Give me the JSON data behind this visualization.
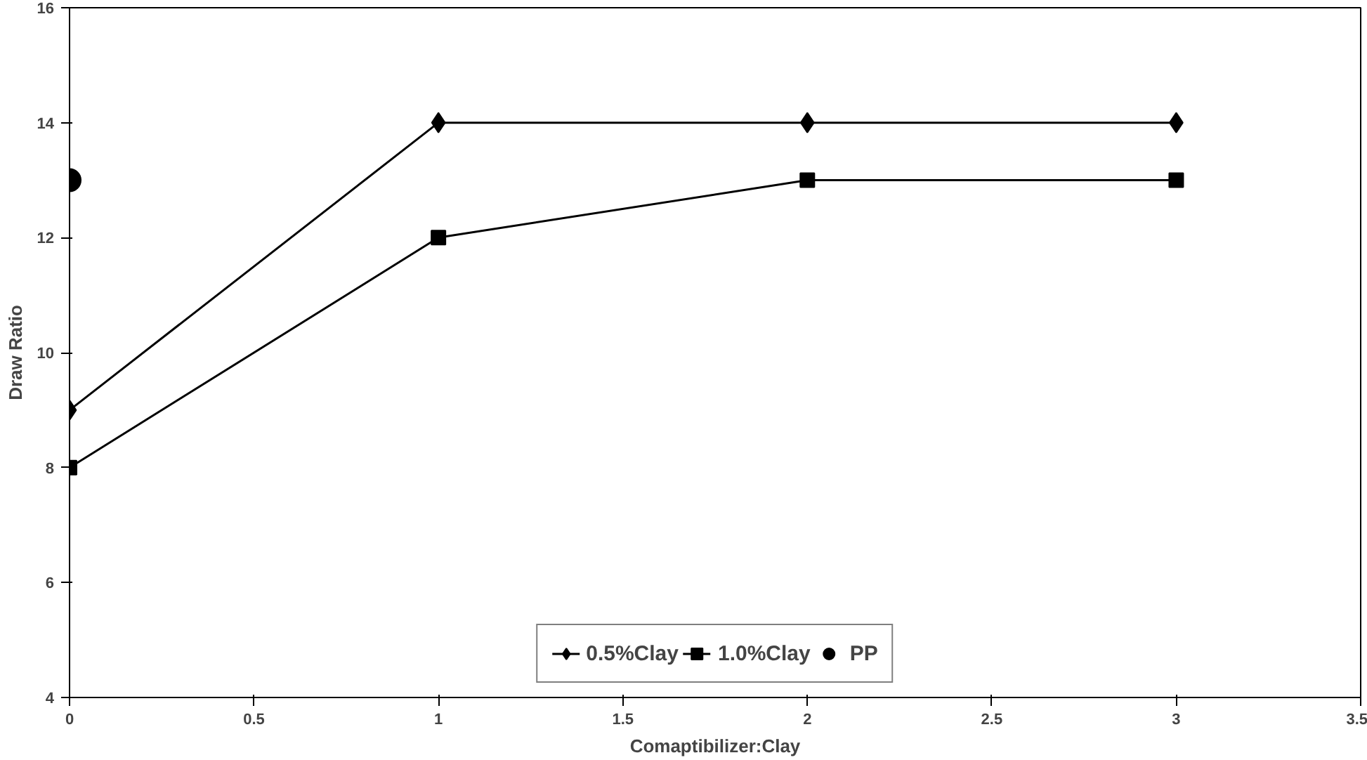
{
  "chart_data": {
    "type": "line",
    "xlabel": "Comaptibilizer:Clay",
    "ylabel": "Draw Ratio",
    "xlim": [
      0,
      3.5
    ],
    "xticks": [
      0,
      0.5,
      1,
      1.5,
      2,
      2.5,
      3,
      3.5
    ],
    "ylim": [
      4,
      16
    ],
    "yticks": [
      4,
      6,
      8,
      10,
      12,
      14,
      16
    ],
    "grid": false,
    "legend": "bottom",
    "series": [
      {
        "name": "0.5%Clay",
        "color": "#000000",
        "marker": "diamond",
        "x": [
          0,
          1,
          2,
          3
        ],
        "values": [
          9,
          14,
          14,
          14
        ]
      },
      {
        "name": "1.0%Clay",
        "color": "#000000",
        "marker": "square",
        "x": [
          0,
          1,
          2,
          3
        ],
        "values": [
          8,
          12,
          13,
          13
        ]
      },
      {
        "name": "PP",
        "color": "#000000",
        "marker": "circle",
        "x": [
          0
        ],
        "values": [
          13
        ]
      }
    ]
  }
}
